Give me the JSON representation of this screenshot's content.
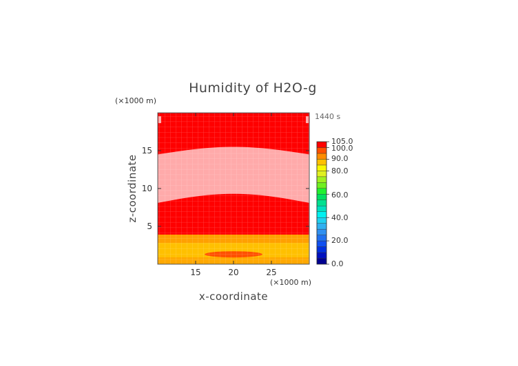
{
  "chart_data": {
    "type": "heatmap",
    "title": "Humidity of H2O-g",
    "xlabel": "x-coordinate",
    "ylabel": "z-coordinate",
    "x_unit": "(×1000 m)",
    "y_unit": "(×1000 m)",
    "time_label": "1440 s",
    "xlim": [
      10,
      30
    ],
    "ylim": [
      0,
      20
    ],
    "x_ticks": [
      15,
      20,
      25
    ],
    "y_ticks": [
      5,
      10,
      15
    ],
    "colorbar": {
      "labels": [
        "105.0",
        "100.0",
        "90.0",
        "80.0",
        "60.0",
        "40.0",
        "20.0",
        "0.0"
      ],
      "label_values": [
        105,
        100,
        90,
        80,
        60,
        40,
        20,
        0
      ],
      "levels": [
        0,
        5,
        10,
        15,
        20,
        25,
        30,
        35,
        40,
        45,
        50,
        55,
        60,
        65,
        70,
        75,
        80,
        85,
        90,
        95,
        100,
        105
      ],
      "colors": [
        "#000090",
        "#0010c0",
        "#0030e0",
        "#1050f0",
        "#2070f0",
        "#3090f0",
        "#30b0f0",
        "#20d0f0",
        "#00f0f0",
        "#00e0c0",
        "#00e090",
        "#00e060",
        "#20f030",
        "#70f020",
        "#a0f020",
        "#e0f020",
        "#f8f800",
        "#ffc000",
        "#ff8c00",
        "#ff5000",
        "#ff0000",
        "#ffffff"
      ]
    },
    "regions": [
      {
        "name": "upper saturated layer",
        "z_range": [
          15.2,
          20
        ],
        "value": 100
      },
      {
        "name": "subsaturated band",
        "z_top_center": 15.5,
        "z_top_edge": 14.5,
        "z_bottom_center": 9.3,
        "z_bottom_edge": 8.1,
        "value": 102
      },
      {
        "name": "middle saturated layer",
        "z_range": [
          3.9,
          8.5
        ],
        "value": 100
      },
      {
        "name": "lower orange layer",
        "z_range": [
          0,
          3.9
        ],
        "value": 88
      },
      {
        "name": "small red lens",
        "x_center": 20,
        "z_center": 1.3,
        "value": 98
      }
    ]
  }
}
